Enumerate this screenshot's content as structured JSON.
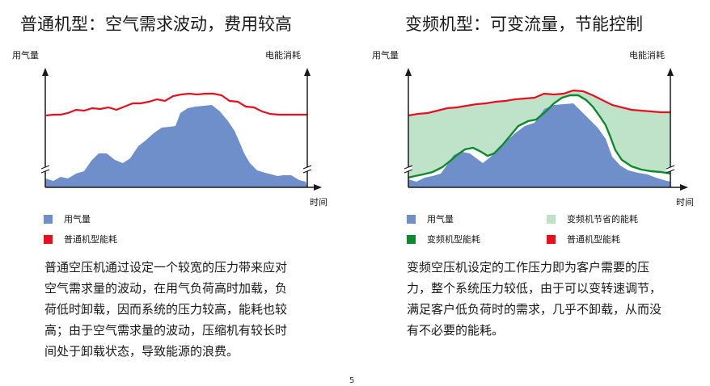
{
  "left": {
    "title": "普通机型：空气需求波动，费用较高",
    "y_label": "用气量",
    "y2_label": "电能消耗",
    "x_label": "时间",
    "legend": [
      {
        "label": "用气量",
        "color": "#6f8fcb"
      },
      {
        "label": "普通机型能耗",
        "color": "#e8101e"
      }
    ],
    "paragraph_lines": [
      "普通空压机通过设定一个较宽的压力带来应对",
      "空气需求量的波动，在用气负荷高时加载，负",
      "荷低时卸载，因而系统的压力较高，能耗也较",
      "高；由于空气需求量的波动，压缩机有较长时",
      "间处于卸载状态，导致能源的浪费。"
    ]
  },
  "right": {
    "title": "变频机型：可变流量，节能控制",
    "y_label": "用气量",
    "y2_label": "电能消耗",
    "x_label": "时间",
    "legend": [
      {
        "label": "用气量",
        "color": "#6f8fcb"
      },
      {
        "label": "变频机节省的能耗",
        "color": "#bfe3c8"
      },
      {
        "label": "变频机型能耗",
        "color": "#0d8a2c"
      },
      {
        "label": "普通机型能耗",
        "color": "#e8101e"
      }
    ],
    "paragraph_lines": [
      "变频空压机设定的工作压力即为客户需要的压",
      "力，整个系统压力较低，由于可以变转速调节，",
      "满足客户低负荷时的需求，几乎不卸载，从而没",
      "有不必要的能耗。"
    ]
  },
  "page_number": "5",
  "colors": {
    "air_demand": "#6f8fcb",
    "standard_energy": "#e8101e",
    "vsd_energy": "#0d8a2c",
    "savings": "#bfe3c8",
    "axis": "#1a1a1a"
  }
}
